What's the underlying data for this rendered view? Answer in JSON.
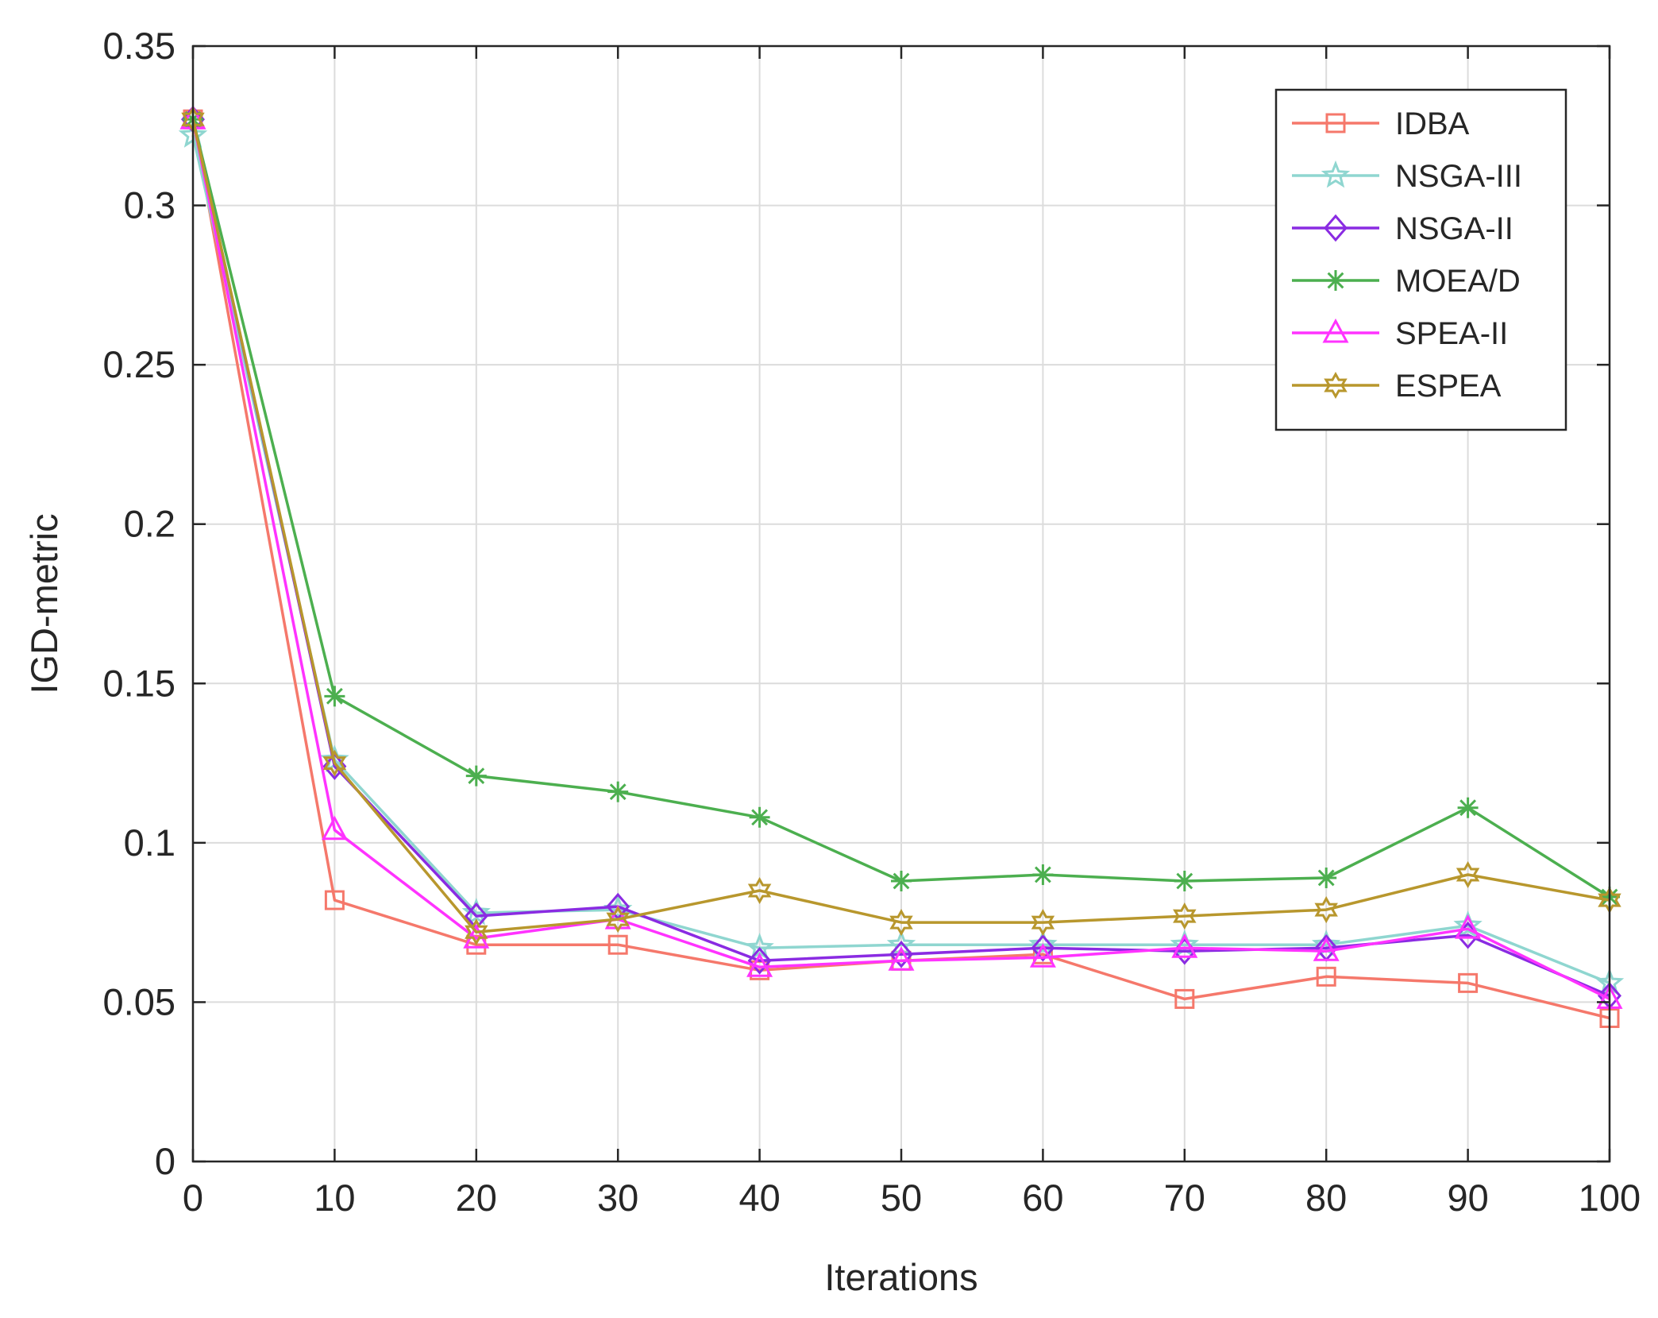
{
  "chart_data": {
    "type": "line",
    "title": "",
    "xlabel": "Iterations",
    "ylabel": "IGD-metric",
    "xlim": [
      0,
      100
    ],
    "ylim": [
      0,
      0.35
    ],
    "xticks": [
      0,
      10,
      20,
      30,
      40,
      50,
      60,
      70,
      80,
      90,
      100
    ],
    "xtick_labels": [
      "0",
      "10",
      "20",
      "30",
      "40",
      "50",
      "60",
      "70",
      "80",
      "90",
      "100"
    ],
    "yticks": [
      0,
      0.05,
      0.1,
      0.15,
      0.2,
      0.25,
      0.3,
      0.35
    ],
    "ytick_labels": [
      "0",
      "0.05",
      "0.1",
      "0.15",
      "0.2",
      "0.25",
      "0.3",
      "0.35"
    ],
    "grid": true,
    "legend_position": "top-right",
    "x": [
      0,
      10,
      20,
      30,
      40,
      50,
      60,
      70,
      80,
      90,
      100
    ],
    "series": [
      {
        "name": "IDBA",
        "color": "#f5786b",
        "marker": "square",
        "values": [
          0.327,
          0.082,
          0.068,
          0.068,
          0.06,
          0.063,
          0.065,
          0.051,
          0.058,
          0.056,
          0.045
        ]
      },
      {
        "name": "NSGA-III",
        "color": "#8fd6d0",
        "marker": "star",
        "values": [
          0.322,
          0.126,
          0.078,
          0.079,
          0.067,
          0.068,
          0.068,
          0.068,
          0.068,
          0.074,
          0.056
        ]
      },
      {
        "name": "NSGA-II",
        "color": "#8a2be2",
        "marker": "diamond",
        "values": [
          0.327,
          0.124,
          0.077,
          0.08,
          0.063,
          0.065,
          0.067,
          0.066,
          0.067,
          0.071,
          0.052
        ]
      },
      {
        "name": "MOEA/D",
        "color": "#4caf4f",
        "marker": "asterisk",
        "values": [
          0.327,
          0.146,
          0.121,
          0.116,
          0.108,
          0.088,
          0.09,
          0.088,
          0.089,
          0.111,
          0.083
        ]
      },
      {
        "name": "SPEA-II",
        "color": "#ff33ff",
        "marker": "triangle",
        "values": [
          0.327,
          0.104,
          0.07,
          0.076,
          0.061,
          0.063,
          0.064,
          0.067,
          0.066,
          0.073,
          0.051
        ]
      },
      {
        "name": "ESPEA",
        "color": "#b8972d",
        "marker": "hexagram",
        "values": [
          0.327,
          0.125,
          0.072,
          0.076,
          0.085,
          0.075,
          0.075,
          0.077,
          0.079,
          0.09,
          0.082
        ]
      }
    ]
  }
}
